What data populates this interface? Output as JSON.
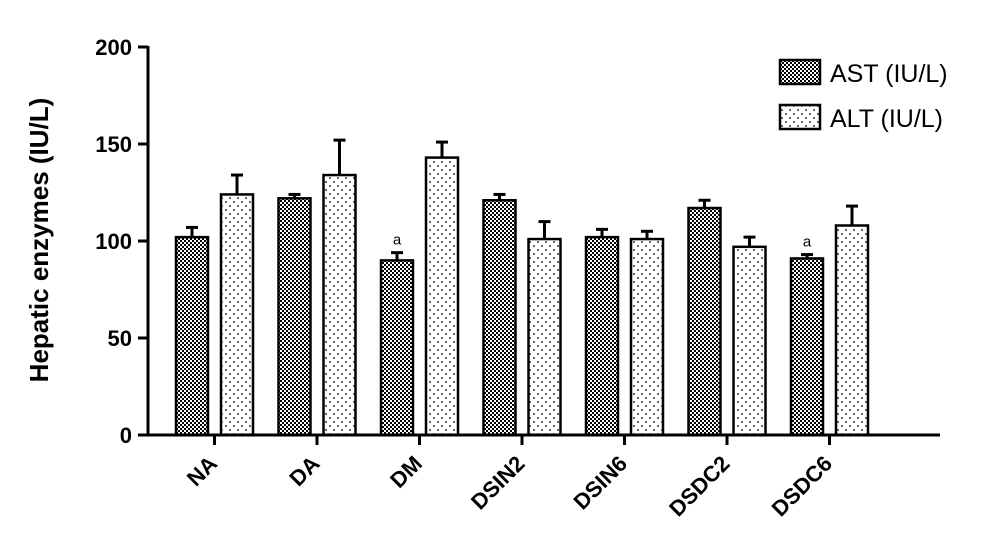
{
  "chart_data": {
    "type": "bar",
    "title": "",
    "xlabel": "",
    "ylabel": "Hepatic enzymes (IU/L)",
    "ylim": [
      0,
      200
    ],
    "yticks": [
      0,
      50,
      100,
      150,
      200
    ],
    "categories": [
      "NA",
      "DA",
      "DM",
      "DSIN2",
      "DSIN6",
      "DSDC2",
      "DSDC6"
    ],
    "series": [
      {
        "name": "AST (IU/L)",
        "pattern": "checker",
        "values": [
          102,
          122,
          90,
          121,
          102,
          117,
          91
        ],
        "errors": [
          5,
          2,
          4,
          3,
          4,
          4,
          2
        ]
      },
      {
        "name": "ALT (IU/L)",
        "pattern": "dots",
        "values": [
          124,
          134,
          143,
          101,
          101,
          97,
          108
        ],
        "errors": [
          10,
          18,
          8,
          9,
          4,
          5,
          10
        ]
      }
    ],
    "annotations": [
      {
        "category": "DM",
        "series": 0,
        "text": "a"
      },
      {
        "category": "DSDC6",
        "series": 0,
        "text": "a"
      }
    ],
    "legend_position": "top-right",
    "grid": false
  }
}
